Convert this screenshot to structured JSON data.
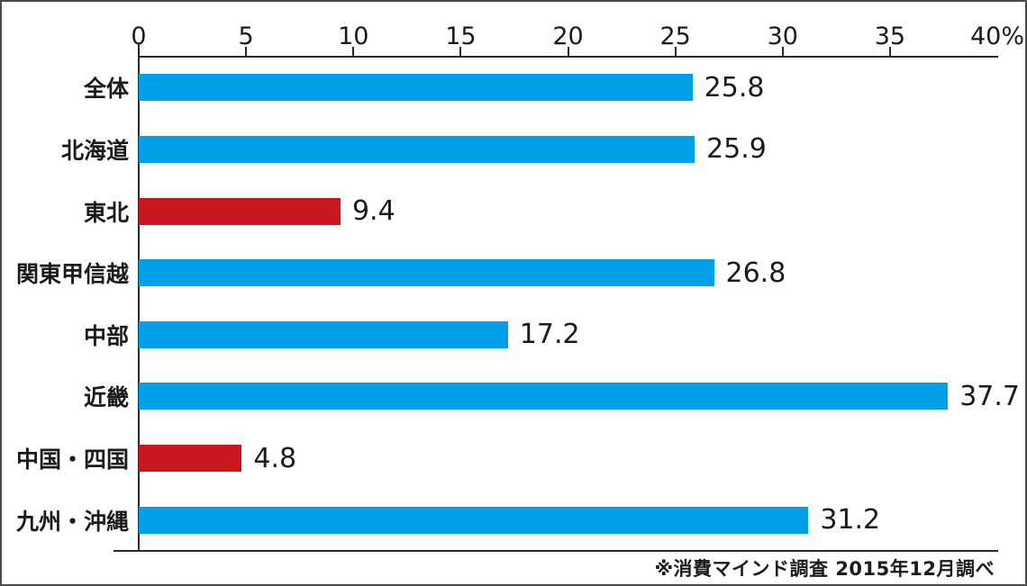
{
  "chart_data": {
    "type": "bar",
    "orientation": "horizontal",
    "title": "",
    "xlabel": "",
    "ylabel": "",
    "categories": [
      "全体",
      "北海道",
      "東北",
      "関東甲信越",
      "中部",
      "近畿",
      "中国・四国",
      "九州・沖縄"
    ],
    "values": [
      25.8,
      25.9,
      9.4,
      26.8,
      17.2,
      37.7,
      4.8,
      31.2
    ],
    "value_labels": [
      "25.8",
      "25.9",
      "9.4",
      "26.8",
      "17.2",
      "37.7",
      "4.8",
      "31.2"
    ],
    "bar_colors": [
      "#019FE8",
      "#019FE8",
      "#C7161D",
      "#019FE8",
      "#019FE8",
      "#019FE8",
      "#C7161D",
      "#019FE8"
    ],
    "xlim": [
      0,
      40
    ],
    "x_ticks": [
      0,
      5,
      10,
      15,
      20,
      25,
      30,
      35,
      40
    ],
    "x_tick_labels": [
      "0",
      "5",
      "10",
      "15",
      "20",
      "25",
      "30",
      "35",
      "40%"
    ],
    "unit": "%",
    "grid": false,
    "legend": null,
    "annotation": "※消費マインド調査 2015年12月調べ"
  },
  "colors": {
    "bar_blue": "#019FE8",
    "bar_red": "#C7161D",
    "axis": "#2b2929",
    "text": "#1c1a1a",
    "background": "#ffffff"
  },
  "footer": {
    "note": "※消費マインド調査 2015年12月調べ"
  }
}
